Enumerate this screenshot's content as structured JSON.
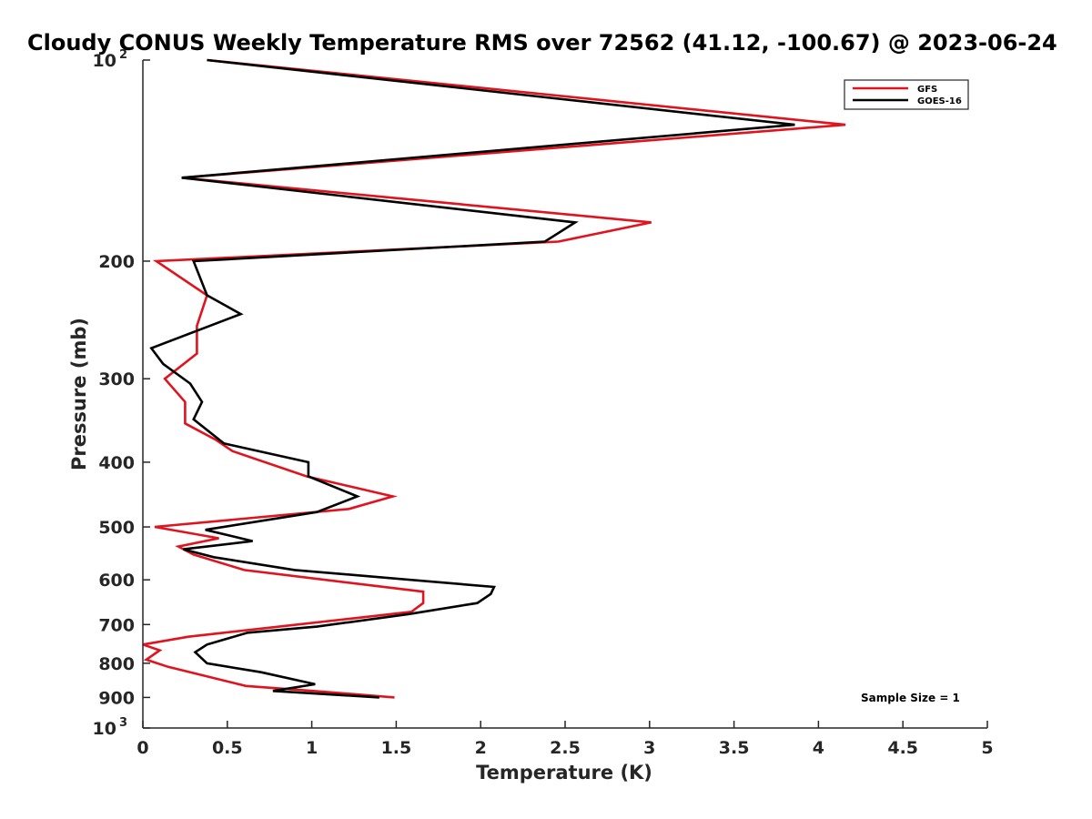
{
  "chart_data": {
    "type": "line",
    "title": "Cloudy CONUS Weekly Temperature RMS over 72562 (41.12, -100.67) @ 2023-06-24",
    "xlabel": "Temperature (K)",
    "ylabel": "Pressure (mb)",
    "xlim": [
      0,
      5
    ],
    "ylim": [
      100,
      1000
    ],
    "y_scale": "log",
    "y_reversed": true,
    "grid": false,
    "legend_position": "top-right",
    "annotation": "Sample Size = 1",
    "x_ticks": [
      {
        "value": 0,
        "label": "0"
      },
      {
        "value": 0.5,
        "label": "0.5"
      },
      {
        "value": 1,
        "label": "1"
      },
      {
        "value": 1.5,
        "label": "1.5"
      },
      {
        "value": 2,
        "label": "2"
      },
      {
        "value": 2.5,
        "label": "2.5"
      },
      {
        "value": 3,
        "label": "3"
      },
      {
        "value": 3.5,
        "label": "3.5"
      },
      {
        "value": 4,
        "label": "4"
      },
      {
        "value": 4.5,
        "label": "4.5"
      },
      {
        "value": 5,
        "label": "5"
      }
    ],
    "y_ticks": [
      {
        "value": 100,
        "label": "10",
        "sup": "2"
      },
      {
        "value": 200,
        "label": "200",
        "sup": ""
      },
      {
        "value": 300,
        "label": "300",
        "sup": ""
      },
      {
        "value": 400,
        "label": "400",
        "sup": ""
      },
      {
        "value": 500,
        "label": "500",
        "sup": ""
      },
      {
        "value": 600,
        "label": "600",
        "sup": ""
      },
      {
        "value": 700,
        "label": "700",
        "sup": ""
      },
      {
        "value": 800,
        "label": "800",
        "sup": ""
      },
      {
        "value": 900,
        "label": "900",
        "sup": ""
      },
      {
        "value": 1000,
        "label": "10",
        "sup": "3"
      }
    ],
    "series": [
      {
        "name": "GFS",
        "color": "#e0141e",
        "points": [
          [
            0.38,
            100
          ],
          [
            4.16,
            125
          ],
          [
            0.23,
            150
          ],
          [
            3.01,
            175
          ],
          [
            2.46,
            187
          ],
          [
            0.08,
            200
          ],
          [
            0.38,
            225
          ],
          [
            0.32,
            250
          ],
          [
            0.32,
            275
          ],
          [
            0.13,
            300
          ],
          [
            0.25,
            325
          ],
          [
            0.25,
            350
          ],
          [
            0.43,
            370
          ],
          [
            0.53,
            385
          ],
          [
            0.97,
            420
          ],
          [
            1.48,
            450
          ],
          [
            1.22,
            470
          ],
          [
            0.07,
            500
          ],
          [
            0.45,
            520
          ],
          [
            0.21,
            535
          ],
          [
            0.3,
            550
          ],
          [
            0.6,
            580
          ],
          [
            1.66,
            625
          ],
          [
            1.66,
            650
          ],
          [
            1.59,
            670
          ],
          [
            1.25,
            685
          ],
          [
            0.27,
            730
          ],
          [
            0.0,
            750
          ],
          [
            0.1,
            765
          ],
          [
            0.02,
            790
          ],
          [
            0.15,
            810
          ],
          [
            0.61,
            865
          ],
          [
            1.01,
            880
          ],
          [
            1.49,
            900
          ]
        ]
      },
      {
        "name": "GOES-16",
        "color": "#000000",
        "points": [
          [
            0.38,
            100
          ],
          [
            3.86,
            125
          ],
          [
            0.23,
            150
          ],
          [
            2.56,
            175
          ],
          [
            2.38,
            187
          ],
          [
            0.3,
            200
          ],
          [
            0.38,
            225
          ],
          [
            0.58,
            240
          ],
          [
            0.05,
            270
          ],
          [
            0.12,
            285
          ],
          [
            0.28,
            305
          ],
          [
            0.35,
            325
          ],
          [
            0.3,
            345
          ],
          [
            0.48,
            375
          ],
          [
            0.98,
            400
          ],
          [
            0.98,
            420
          ],
          [
            1.27,
            450
          ],
          [
            1.03,
            475
          ],
          [
            0.37,
            505
          ],
          [
            0.65,
            525
          ],
          [
            0.24,
            540
          ],
          [
            0.42,
            555
          ],
          [
            0.9,
            580
          ],
          [
            2.08,
            615
          ],
          [
            2.06,
            630
          ],
          [
            1.98,
            650
          ],
          [
            1.58,
            675
          ],
          [
            1.03,
            705
          ],
          [
            0.62,
            720
          ],
          [
            0.38,
            750
          ],
          [
            0.31,
            770
          ],
          [
            0.38,
            800
          ],
          [
            0.7,
            825
          ],
          [
            1.02,
            860
          ],
          [
            0.77,
            880
          ],
          [
            1.4,
            900
          ]
        ]
      }
    ]
  }
}
